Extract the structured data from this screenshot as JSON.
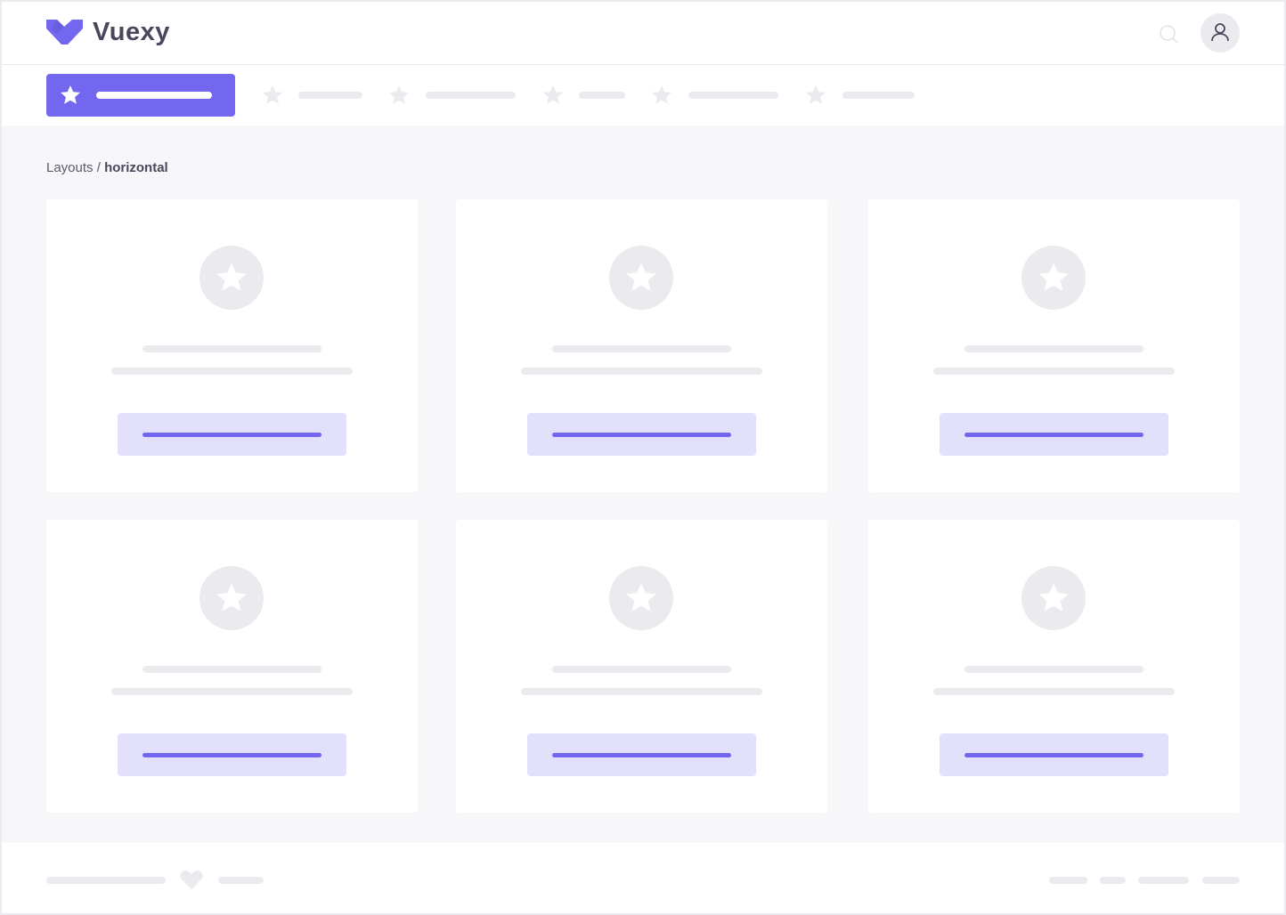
{
  "header": {
    "brand": "Vuexy",
    "logo_icon": "vuexy-logo",
    "search_icon": "search-icon",
    "avatar_icon": "user-icon"
  },
  "nav": {
    "active_icon": "star-icon",
    "item_icon": "star-icon"
  },
  "breadcrumb": {
    "parent": "Layouts",
    "separator": " / ",
    "current": "horizontal"
  },
  "footer": {
    "icon": "heart-icon"
  },
  "colors": {
    "primary": "#7367f0",
    "primary_light": "#e2e0fb",
    "placeholder": "#ebebef",
    "body_bg": "#f7f7f9",
    "text": "#4b465c"
  }
}
